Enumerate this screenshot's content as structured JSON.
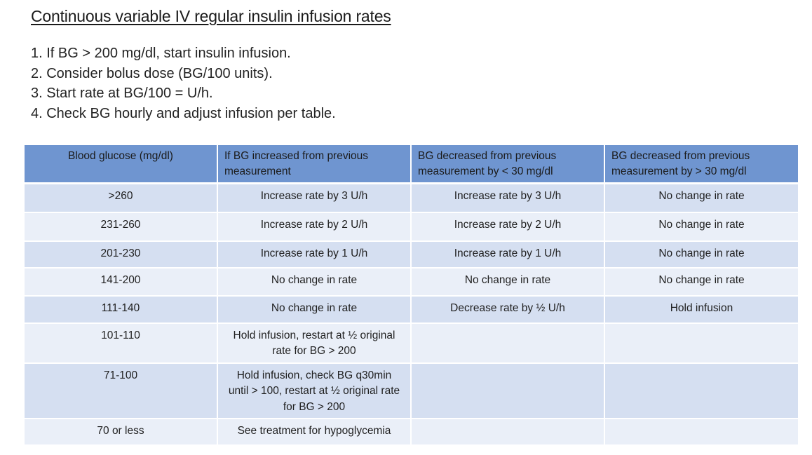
{
  "title": "Continuous variable IV regular insulin infusion rates",
  "steps": [
    "1. If BG > 200 mg/dl, start insulin infusion.",
    "2. Consider bolus dose (BG/100 units).",
    "3. Start rate at BG/100 = U/h.",
    "4. Check BG hourly and adjust infusion per table."
  ],
  "table": {
    "headers": [
      "Blood glucose (mg/dl)",
      "If BG increased from previous measurement",
      "BG decreased from previous measurement by < 30 mg/dl",
      "BG decreased from previous measurement by > 30 mg/dl"
    ],
    "rows": [
      [
        ">260",
        "Increase rate by 3 U/h",
        "Increase rate by 3 U/h",
        "No change in rate"
      ],
      [
        "231-260",
        "Increase rate by 2 U/h",
        "Increase rate by 2 U/h",
        "No change in rate"
      ],
      [
        "201-230",
        "Increase rate by 1 U/h",
        "Increase rate by 1 U/h",
        "No change in rate"
      ],
      [
        "141-200",
        "No change in rate",
        "No change in rate",
        "No change in rate"
      ],
      [
        "111-140",
        "No change in rate",
        "Decrease rate by ½ U/h",
        "Hold infusion"
      ],
      [
        "101-110",
        "Hold infusion, restart at ½ original rate for BG > 200",
        "",
        ""
      ],
      [
        "71-100",
        "Hold infusion, check BG q30min until > 100, restart at ½ original rate for BG > 200",
        "",
        ""
      ],
      [
        "70 or less",
        "See treatment for hypoglycemia",
        "",
        ""
      ]
    ]
  },
  "colors": {
    "header_bg": "#6f95d0",
    "row_dark": "#d5dff1",
    "row_light": "#eaeff8"
  }
}
